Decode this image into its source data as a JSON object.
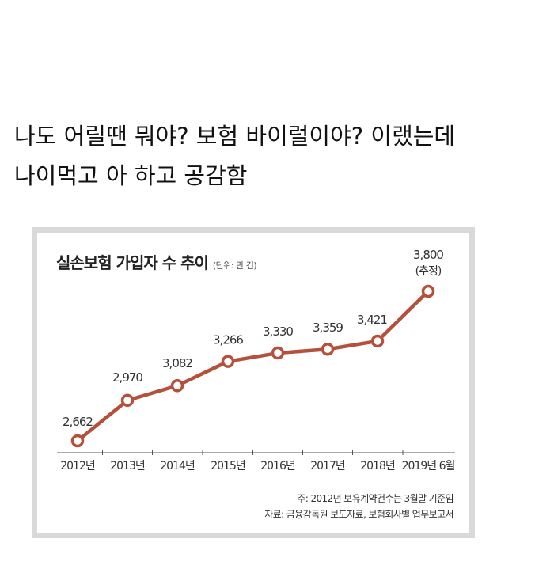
{
  "post": {
    "caption_line1": "나도 어릴땐 뭐야? 보험 바이럴이야? 이랬는데",
    "caption_line2": "나이먹고 아 하고 공감함"
  },
  "chart": {
    "title": "실손보험 가입자 수 추이",
    "unit": "(단위: 만 건)",
    "estimate_label": "(추정)",
    "note": "주: 2012년 보유계약건수는 3월말 기준임",
    "source": "자료: 금융감독원 보도자료, 보험회사별 업무보고서",
    "line_color": "#b5503b"
  },
  "chart_data": {
    "type": "line",
    "title": "실손보험 가입자 수 추이",
    "subtitle": "(단위: 만 건)",
    "categories": [
      "2012년",
      "2013년",
      "2014년",
      "2015년",
      "2016년",
      "2017년",
      "2018년",
      "2019년 6월"
    ],
    "series": [
      {
        "name": "실손보험 가입자 수",
        "values": [
          2662,
          2970,
          3082,
          3266,
          3330,
          3359,
          3421,
          3800
        ]
      }
    ],
    "value_labels": [
      "2,662",
      "2,970",
      "3,082",
      "3,266",
      "3,330",
      "3,359",
      "3,421",
      "3,800"
    ],
    "annotations": [
      "3,800 (추정)"
    ],
    "xlabel": "",
    "ylabel": "",
    "grid": false,
    "notes": [
      "주: 2012년 보유계약건수는 3월말 기준임",
      "자료: 금융감독원 보도자료, 보험회사별 업무보고서"
    ]
  }
}
